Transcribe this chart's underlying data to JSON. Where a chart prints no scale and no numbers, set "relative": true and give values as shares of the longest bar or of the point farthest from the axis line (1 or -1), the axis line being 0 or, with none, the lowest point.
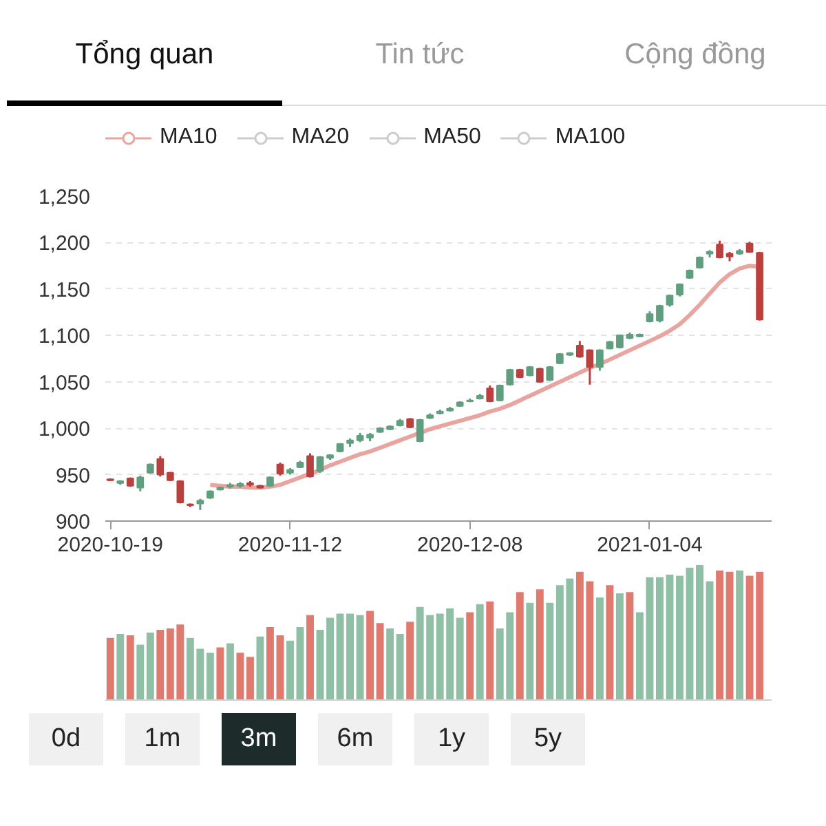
{
  "chart_data": [
    {
      "type": "candlestick",
      "annotations": [
        "Tổng quan",
        "Tin tức",
        "Cộng đồng"
      ],
      "categories": [
        "2020-10-19",
        null,
        null,
        null,
        null,
        null,
        null,
        null,
        null,
        null,
        null,
        null,
        null,
        null,
        null,
        null,
        null,
        null,
        "2020-11-12",
        null,
        null,
        null,
        null,
        null,
        null,
        null,
        null,
        null,
        null,
        null,
        null,
        null,
        null,
        null,
        null,
        null,
        "2020-12-08",
        null,
        null,
        null,
        null,
        null,
        null,
        null,
        null,
        null,
        null,
        null,
        null,
        null,
        null,
        null,
        null,
        null,
        "2021-01-04",
        null,
        null,
        null,
        null,
        null,
        null,
        null,
        null,
        null,
        null,
        null
      ],
      "ohlc": [
        [
          945,
          946,
          943,
          944
        ],
        [
          941,
          944,
          939,
          943
        ],
        [
          946,
          947,
          937,
          938
        ],
        [
          936,
          949,
          932,
          947
        ],
        [
          952,
          962,
          951,
          961
        ],
        [
          967,
          970,
          948,
          950
        ],
        [
          952,
          953,
          943,
          944
        ],
        [
          943,
          944,
          919,
          920
        ],
        [
          918,
          919,
          915,
          917
        ],
        [
          919,
          924,
          912,
          922
        ],
        [
          925,
          933,
          924,
          932
        ],
        [
          934,
          937,
          933,
          936
        ],
        [
          937,
          941,
          935,
          939
        ],
        [
          938,
          942,
          936,
          940
        ],
        [
          941,
          943,
          937,
          939
        ],
        [
          938,
          939,
          935,
          936
        ],
        [
          938,
          948,
          937,
          947
        ],
        [
          961,
          963,
          949,
          951
        ],
        [
          952,
          957,
          950,
          955
        ],
        [
          958,
          965,
          957,
          963
        ],
        [
          970,
          973,
          947,
          948
        ],
        [
          954,
          970,
          952,
          969
        ],
        [
          968,
          972,
          966,
          971
        ],
        [
          975,
          984,
          974,
          983
        ],
        [
          984,
          989,
          980,
          987
        ],
        [
          987,
          995,
          985,
          992
        ],
        [
          990,
          995,
          986,
          993
        ],
        [
          996,
          1001,
          995,
          1000
        ],
        [
          999,
          1003,
          998,
          1002
        ],
        [
          1003,
          1010,
          1002,
          1008
        ],
        [
          1010,
          1011,
          1000,
          1001
        ],
        [
          986,
          1010,
          985,
          1009
        ],
        [
          1011,
          1016,
          1010,
          1014
        ],
        [
          1016,
          1020,
          1015,
          1018
        ],
        [
          1019,
          1023,
          1018,
          1021
        ],
        [
          1024,
          1029,
          1023,
          1028
        ],
        [
          1029,
          1032,
          1028,
          1030
        ],
        [
          1032,
          1037,
          1031,
          1035
        ],
        [
          1043,
          1046,
          1028,
          1029
        ],
        [
          1030,
          1047,
          1029,
          1046
        ],
        [
          1047,
          1064,
          1046,
          1063
        ],
        [
          1063,
          1064,
          1054,
          1055
        ],
        [
          1057,
          1067,
          1056,
          1066
        ],
        [
          1064,
          1065,
          1049,
          1050
        ],
        [
          1052,
          1067,
          1051,
          1066
        ],
        [
          1070,
          1081,
          1069,
          1080
        ],
        [
          1079,
          1082,
          1078,
          1081
        ],
        [
          1089,
          1094,
          1076,
          1077
        ],
        [
          1084,
          1085,
          1047,
          1066
        ],
        [
          1066,
          1085,
          1062,
          1084
        ],
        [
          1086,
          1094,
          1085,
          1093
        ],
        [
          1087,
          1101,
          1086,
          1100
        ],
        [
          1097,
          1103,
          1096,
          1101
        ],
        [
          1099,
          1102,
          1098,
          1101
        ],
        [
          1115,
          1126,
          1114,
          1123
        ],
        [
          1116,
          1133,
          1114,
          1132
        ],
        [
          1133,
          1144,
          1131,
          1143
        ],
        [
          1144,
          1156,
          1142,
          1155
        ],
        [
          1162,
          1171,
          1161,
          1170
        ],
        [
          1173,
          1185,
          1172,
          1184
        ],
        [
          1188,
          1192,
          1184,
          1190
        ],
        [
          1198,
          1202,
          1183,
          1184
        ],
        [
          1188,
          1190,
          1180,
          1185
        ],
        [
          1188,
          1193,
          1187,
          1191
        ],
        [
          1199,
          1201,
          1189,
          1190
        ],
        [
          1189,
          1190,
          1116,
          1117
        ]
      ],
      "colors": [
        "#b8413f",
        "#5f9f7f",
        "#b8413f",
        "#5f9f7f",
        "#5f9f7f",
        "#b8413f",
        "#b8413f",
        "#b8413f",
        "#b8413f",
        "#5f9f7f",
        "#5f9f7f",
        "#5f9f7f",
        "#5f9f7f",
        "#5f9f7f",
        "#b8413f",
        "#b8413f",
        "#5f9f7f",
        "#b8413f",
        "#5f9f7f",
        "#5f9f7f",
        "#b8413f",
        "#5f9f7f",
        "#5f9f7f",
        "#5f9f7f",
        "#5f9f7f",
        "#5f9f7f",
        "#5f9f7f",
        "#5f9f7f",
        "#5f9f7f",
        "#5f9f7f",
        "#b8413f",
        "#5f9f7f",
        "#5f9f7f",
        "#5f9f7f",
        "#5f9f7f",
        "#5f9f7f",
        "#5f9f7f",
        "#5f9f7f",
        "#b8413f",
        "#5f9f7f",
        "#5f9f7f",
        "#b8413f",
        "#5f9f7f",
        "#b8413f",
        "#5f9f7f",
        "#5f9f7f",
        "#5f9f7f",
        "#b8413f",
        "#b8413f",
        "#5f9f7f",
        "#5f9f7f",
        "#5f9f7f",
        "#5f9f7f",
        "#5f9f7f",
        "#5f9f7f",
        "#5f9f7f",
        "#5f9f7f",
        "#5f9f7f",
        "#5f9f7f",
        "#5f9f7f",
        "#5f9f7f",
        "#b8413f",
        "#b8413f",
        "#5f9f7f",
        "#b8413f",
        "#b8413f"
      ],
      "series": [
        {
          "name": "MA10",
          "type": "line",
          "color": "#e8a5a0",
          "values": [
            null,
            null,
            null,
            null,
            null,
            null,
            null,
            null,
            null,
            null,
            939,
            938,
            937,
            937,
            936,
            936,
            937,
            939,
            943,
            947,
            951,
            955,
            960,
            964,
            968,
            972,
            975,
            979,
            983,
            987,
            991,
            995,
            999,
            1002,
            1005,
            1008,
            1011,
            1014,
            1018,
            1021,
            1025,
            1030,
            1035,
            1040,
            1045,
            1050,
            1055,
            1060,
            1065,
            1069,
            1074,
            1079,
            1084,
            1089,
            1094,
            1099,
            1105,
            1112,
            1122,
            1133,
            1145,
            1157,
            1166,
            1172,
            1175,
            1174
          ]
        },
        {
          "name": "MA20",
          "type": "line",
          "color": "#cccccc",
          "values": [
            null,
            null,
            null,
            null,
            null,
            null,
            null,
            null,
            null,
            null,
            null,
            null,
            null,
            null,
            null,
            null,
            null,
            null,
            null,
            null,
            null,
            null,
            null,
            null,
            null,
            null,
            null,
            null,
            null,
            null,
            null,
            null,
            null,
            null,
            null,
            null,
            null,
            null,
            null,
            null,
            null,
            null,
            null,
            null,
            null,
            null,
            null,
            null,
            null,
            null,
            null,
            null,
            null,
            null,
            null,
            null,
            null,
            null,
            null,
            null,
            null,
            null,
            null,
            null,
            null,
            null
          ]
        },
        {
          "name": "MA50",
          "type": "line",
          "color": "#cccccc",
          "values": [
            null,
            null,
            null,
            null,
            null,
            null,
            null,
            null,
            null,
            null,
            null,
            null,
            null,
            null,
            null,
            null,
            null,
            null,
            null,
            null,
            null,
            null,
            null,
            null,
            null,
            null,
            null,
            null,
            null,
            null,
            null,
            null,
            null,
            null,
            null,
            null,
            null,
            null,
            null,
            null,
            null,
            null,
            null,
            null,
            null,
            null,
            null,
            null,
            null,
            null,
            null,
            null,
            null,
            null,
            null,
            null,
            null,
            null,
            null,
            null,
            null,
            null,
            null,
            null,
            null,
            null
          ]
        },
        {
          "name": "MA100",
          "type": "line",
          "color": "#cccccc",
          "values": [
            null,
            null,
            null,
            null,
            null,
            null,
            null,
            null,
            null,
            null,
            null,
            null,
            null,
            null,
            null,
            null,
            null,
            null,
            null,
            null,
            null,
            null,
            null,
            null,
            null,
            null,
            null,
            null,
            null,
            null,
            null,
            null,
            null,
            null,
            null,
            null,
            null,
            null,
            null,
            null,
            null,
            null,
            null,
            null,
            null,
            null,
            null,
            null,
            null,
            null,
            null,
            null,
            null,
            null,
            null,
            null,
            null,
            null,
            null,
            null,
            null,
            null,
            null,
            null,
            null,
            null
          ]
        }
      ],
      "ylim": [
        900,
        1250
      ],
      "yticks": [
        900,
        950,
        {
          "value": 1000,
          "label": "1,000"
        },
        {
          "value": 1050,
          "label": "1,050"
        },
        {
          "value": 1100,
          "label": "1,100"
        },
        {
          "value": 1150,
          "label": "1,150"
        },
        {
          "value": 1200,
          "label": "1,200"
        },
        {
          "value": 1250,
          "label": "1,250"
        }
      ],
      "grid": "y",
      "legend": "top left"
    },
    {
      "type": "bar",
      "relative": true,
      "annotations": [
        "0d",
        "1m",
        "3m",
        "6m",
        "1y",
        "5y"
      ],
      "categories": [
        null,
        null,
        null,
        null,
        null,
        null,
        null,
        null,
        null,
        null,
        null,
        null,
        null,
        null,
        null,
        null,
        null,
        null,
        null,
        null,
        null,
        null,
        null,
        null,
        null,
        null,
        null,
        null,
        null,
        null,
        null,
        null,
        null,
        null,
        null,
        null,
        null,
        null,
        null,
        null,
        null,
        null,
        null,
        null,
        null,
        null,
        null,
        null,
        null,
        null,
        null,
        null,
        null,
        null,
        null,
        null,
        null,
        null,
        null,
        null,
        null,
        null,
        null,
        null,
        null,
        null
      ],
      "values": [
        0.46,
        0.49,
        0.48,
        0.41,
        0.5,
        0.52,
        0.53,
        0.56,
        0.46,
        0.38,
        0.35,
        0.39,
        0.42,
        0.35,
        0.32,
        0.47,
        0.54,
        0.48,
        0.44,
        0.54,
        0.63,
        0.52,
        0.61,
        0.64,
        0.64,
        0.63,
        0.66,
        0.57,
        0.53,
        0.49,
        0.58,
        0.69,
        0.63,
        0.64,
        0.68,
        0.61,
        0.65,
        0.71,
        0.73,
        0.53,
        0.65,
        0.8,
        0.72,
        0.82,
        0.72,
        0.85,
        0.9,
        0.95,
        0.88,
        0.76,
        0.85,
        0.79,
        0.8,
        0.65,
        0.91,
        0.91,
        0.93,
        0.92,
        0.98,
        1,
        0.88,
        0.96,
        0.95,
        0.96,
        0.92,
        0.95
      ],
      "colors": [
        "#e0796e",
        "#8fbfa5",
        "#e0796e",
        "#8fbfa5",
        "#8fbfa5",
        "#e0796e",
        "#e0796e",
        "#e0796e",
        "#8fbfa5",
        "#8fbfa5",
        "#8fbfa5",
        "#e0796e",
        "#8fbfa5",
        "#e0796e",
        "#e0796e",
        "#8fbfa5",
        "#e0796e",
        "#e0796e",
        "#8fbfa5",
        "#8fbfa5",
        "#e0796e",
        "#8fbfa5",
        "#8fbfa5",
        "#8fbfa5",
        "#8fbfa5",
        "#8fbfa5",
        "#e0796e",
        "#e0796e",
        "#8fbfa5",
        "#8fbfa5",
        "#e0796e",
        "#8fbfa5",
        "#8fbfa5",
        "#8fbfa5",
        "#8fbfa5",
        "#8fbfa5",
        "#e0796e",
        "#8fbfa5",
        "#e0796e",
        "#8fbfa5",
        "#8fbfa5",
        "#e0796e",
        "#8fbfa5",
        "#e0796e",
        "#8fbfa5",
        "#8fbfa5",
        "#8fbfa5",
        "#e0796e",
        "#e0796e",
        "#8fbfa5",
        "#e0796e",
        "#8fbfa5",
        "#e0796e",
        "#8fbfa5",
        "#8fbfa5",
        "#8fbfa5",
        "#8fbfa5",
        "#8fbfa5",
        "#8fbfa5",
        "#8fbfa5",
        "#8fbfa5",
        "#e0796e",
        "#e0796e",
        "#8fbfa5",
        "#e0796e",
        "#e0796e"
      ]
    }
  ]
}
